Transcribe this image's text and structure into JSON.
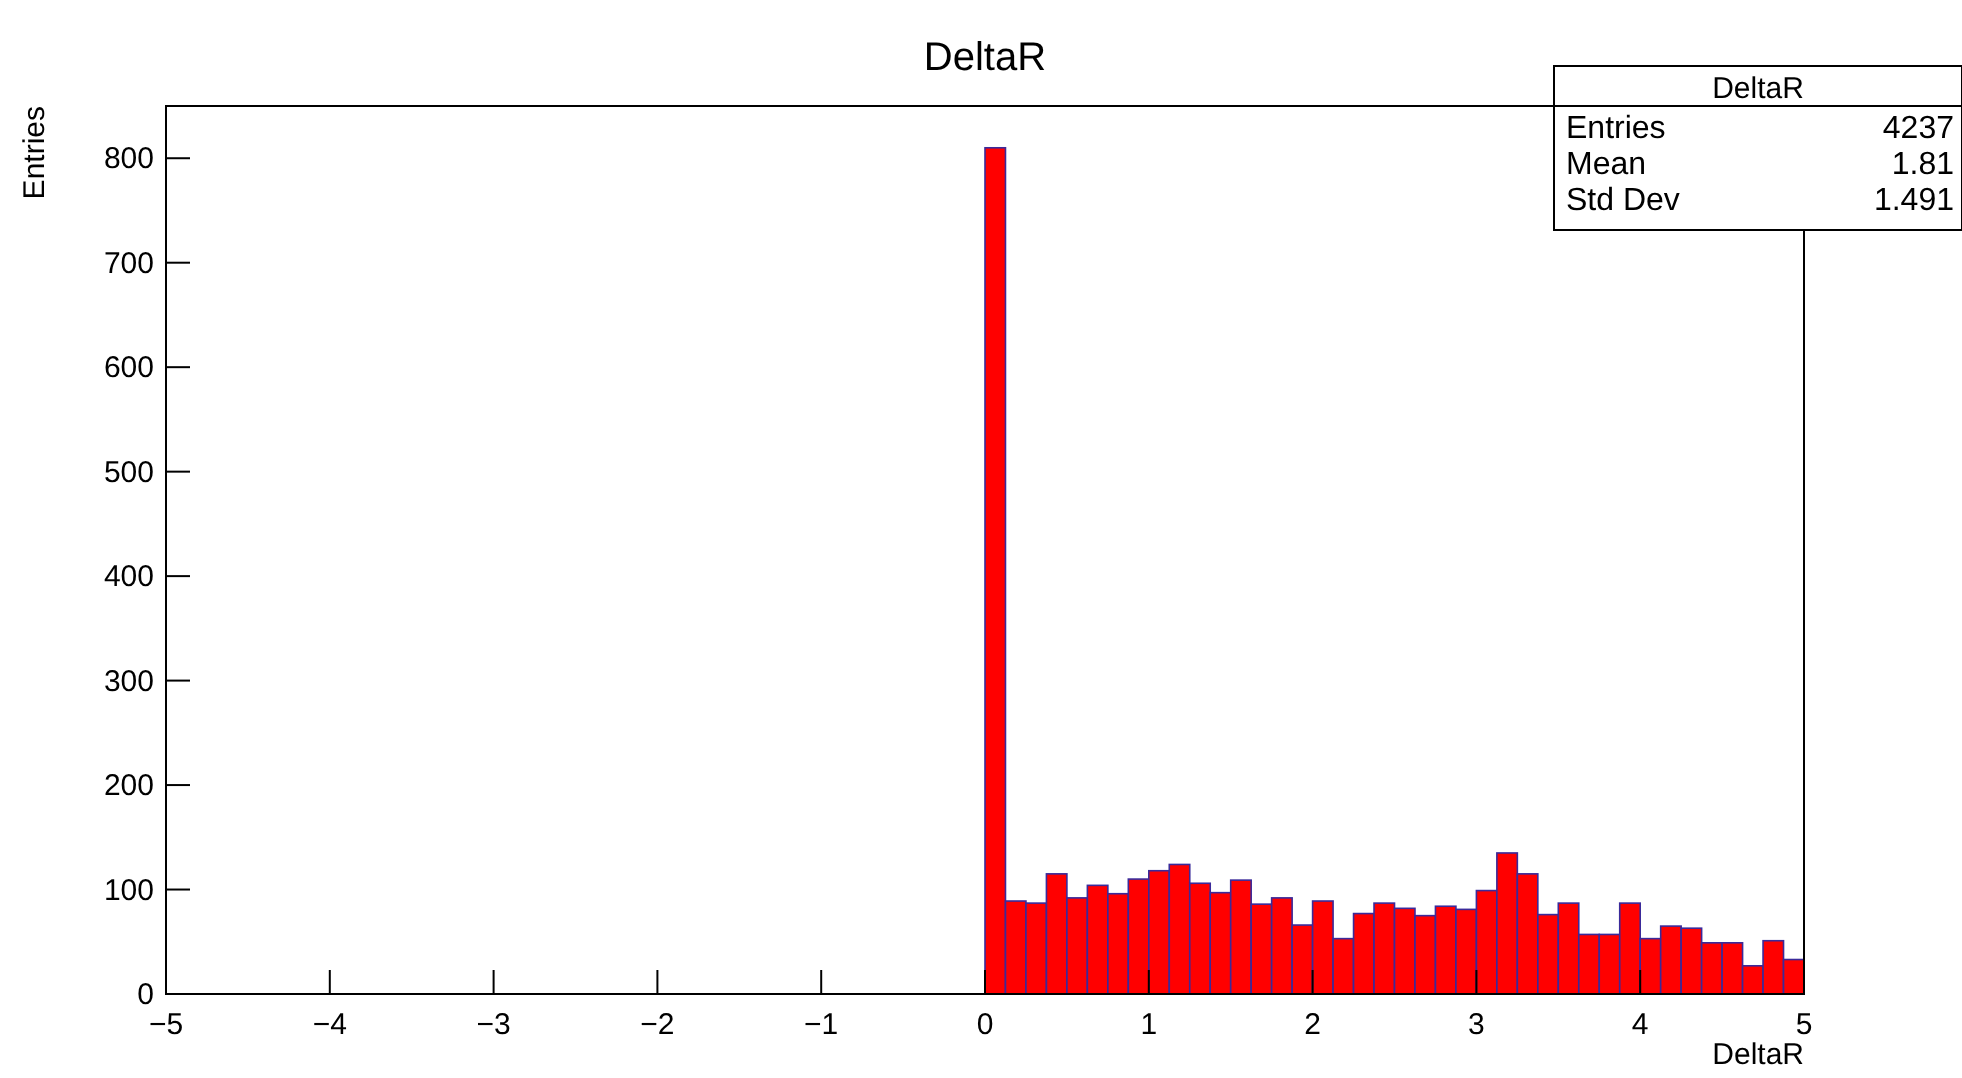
{
  "chart_data": {
    "type": "histogram",
    "title": "DeltaR",
    "xlabel": "DeltaR",
    "ylabel": "Entries",
    "bins": [
      -5,
      -4.875,
      -4.75,
      -4.625,
      -4.5,
      -4.375,
      -4.25,
      -4.125,
      -4,
      -3.875,
      -3.75,
      -3.625,
      -3.5,
      -3.375,
      -3.25,
      -3.125,
      -3,
      -2.875,
      -2.75,
      -2.625,
      -2.5,
      -2.375,
      -2.25,
      -2.125,
      -2,
      -1.875,
      -1.75,
      -1.625,
      -1.5,
      -1.375,
      -1.25,
      -1.125,
      -1,
      -0.875,
      -0.75,
      -0.625,
      -0.5,
      -0.375,
      -0.25,
      -0.125,
      0,
      0.125,
      0.25,
      0.375,
      0.5,
      0.625,
      0.75,
      0.875,
      1,
      1.125,
      1.25,
      1.375,
      1.5,
      1.625,
      1.75,
      1.875,
      2,
      2.125,
      2.25,
      2.375,
      2.5,
      2.625,
      2.75,
      2.875,
      3,
      3.125,
      3.25,
      3.375,
      3.5,
      3.625,
      3.75,
      3.875,
      4,
      4.125,
      4.25,
      4.375,
      4.5,
      4.625,
      4.75,
      4.875,
      5
    ],
    "values": [
      0,
      0,
      0,
      0,
      0,
      0,
      0,
      0,
      0,
      0,
      0,
      0,
      0,
      0,
      0,
      0,
      0,
      0,
      0,
      0,
      0,
      0,
      0,
      0,
      0,
      0,
      0,
      0,
      0,
      0,
      0,
      0,
      0,
      0,
      0,
      0,
      0,
      0,
      0,
      0,
      810,
      89,
      87,
      115,
      92,
      104,
      96,
      110,
      118,
      124,
      106,
      97,
      109,
      86,
      92,
      66,
      89,
      53,
      77,
      87,
      82,
      75,
      84,
      81,
      99,
      135,
      115,
      76,
      87,
      57,
      57,
      87,
      53,
      65,
      63,
      49,
      49,
      27,
      51,
      33
    ],
    "color": "#ff0000",
    "xlim": [
      -5,
      5
    ],
    "xticks": [
      -5,
      -4,
      -3,
      -2,
      -1,
      0,
      1,
      2,
      3,
      4,
      5
    ],
    "ylim": [
      0,
      850
    ],
    "yticks": [
      0,
      100,
      200,
      300,
      400,
      500,
      600,
      700,
      800
    ],
    "grid": false,
    "annotations": [
      "DeltaR",
      "Entries",
      "4237",
      "Mean",
      "1.81",
      "Std Dev",
      "1.491"
    ]
  }
}
